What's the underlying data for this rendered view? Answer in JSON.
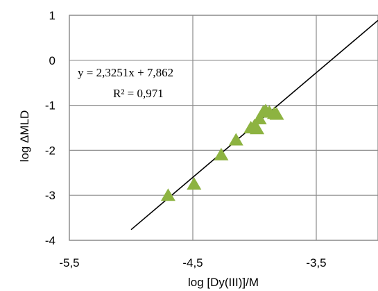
{
  "chart_data": {
    "type": "scatter",
    "xlabel": "log [Dy(III)]/M",
    "ylabel": "log ΔMLD",
    "xlim": [
      -5.5,
      -3.0
    ],
    "ylim": [
      -4,
      1
    ],
    "xticks": [
      "-5,5",
      "-4,5",
      "-3,5"
    ],
    "yticks": [
      "1",
      "0",
      "-1",
      "-2",
      "-3",
      "-4"
    ],
    "grid": true,
    "marker": "triangle",
    "marker_color": "#8db341",
    "series": [
      {
        "points": [
          {
            "x": -4.7,
            "y": -3.0
          },
          {
            "x": -4.49,
            "y": -2.75
          },
          {
            "x": -4.27,
            "y": -2.1
          },
          {
            "x": -4.15,
            "y": -1.77
          },
          {
            "x": -4.03,
            "y": -1.5
          },
          {
            "x": -4.0,
            "y": -1.45
          },
          {
            "x": -3.98,
            "y": -1.52
          },
          {
            "x": -3.96,
            "y": -1.3
          },
          {
            "x": -3.93,
            "y": -1.15
          },
          {
            "x": -3.91,
            "y": -1.12
          },
          {
            "x": -3.88,
            "y": -1.15
          },
          {
            "x": -3.84,
            "y": -1.18
          },
          {
            "x": -3.82,
            "y": -1.2
          }
        ]
      }
    ],
    "trendline": {
      "slope": 2.3251,
      "intercept": 7.862,
      "x_start": -5.0,
      "x_end": -3.0,
      "color": "#000000",
      "equation": "y = 2,3251x + 7,862",
      "r2": "R² = 0,971"
    }
  }
}
